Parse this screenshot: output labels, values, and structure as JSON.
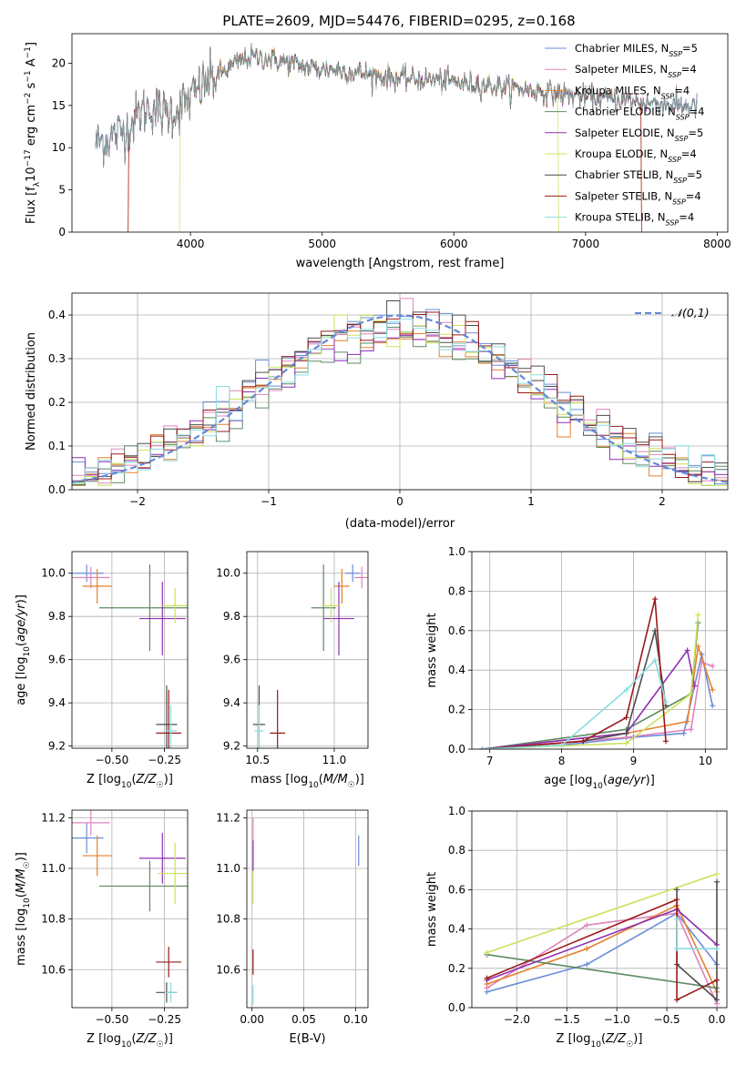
{
  "figure": {
    "title": "PLATE=2609, MJD=54476, FIBERID=0295, z=0.168"
  },
  "colors": {
    "Chabrier MILES": "#6a8ed8",
    "Salpeter MILES": "#e083bd",
    "Kroupa MILES": "#e5802c",
    "Chabrier ELODIE": "#5e8a62",
    "Salpeter ELODIE": "#8f2fb3",
    "Kroupa ELODIE": "#c9e35a",
    "Chabrier STELIB": "#4d4d4d",
    "Salpeter STELIB": "#9b1a1a",
    "Kroupa STELIB": "#8bdde0"
  },
  "chart_data": [
    {
      "id": "spectrum",
      "type": "line",
      "title": "PLATE=2609, MJD=54476, FIBERID=0295, z=0.168",
      "xlabel": "wavelength [Angstrom, rest frame]",
      "ylabel": "Flux [f_λ 10^-17 erg cm^-2 s^-1 A^-1]",
      "xlim": [
        3100,
        8080
      ],
      "ylim": [
        0,
        23.5
      ],
      "xticks": [
        4000,
        5000,
        6000,
        7000,
        8000
      ],
      "yticks": [
        0,
        5,
        10,
        15,
        20
      ],
      "grid": false,
      "legend": "upper-right",
      "legend_entries": [
        "Chabrier MILES, N_SSP=5",
        "Salpeter MILES, N_SSP=4",
        "Kroupa MILES, N_SSP=4",
        "Chabrier ELODIE, N_SSP=4",
        "Salpeter ELODIE, N_SSP=5",
        "Kroupa ELODIE, N_SSP=4",
        "Chabrier STELIB, N_SSP=5",
        "Salpeter STELIB, N_SSP=4",
        "Kroupa STELIB, N_SSP=4"
      ],
      "data_continuum": {
        "wavelength": [
          3280,
          3400,
          3520,
          3620,
          3700,
          3800,
          3900,
          4000,
          4100,
          4200,
          4300,
          4400,
          4500,
          4700,
          4900,
          5100,
          5300,
          5500,
          5700,
          5900,
          6100,
          6300,
          6500,
          6700,
          6900,
          7100,
          7300,
          7500,
          7700,
          7850
        ],
        "flux": [
          10.5,
          11.2,
          12.3,
          14.2,
          14.8,
          14.0,
          14.5,
          15.8,
          17.5,
          18.5,
          19.5,
          20.5,
          20.8,
          20.2,
          19.5,
          19.2,
          18.8,
          18.3,
          18.1,
          18.0,
          17.6,
          17.3,
          17.0,
          16.6,
          16.2,
          15.9,
          15.6,
          15.3,
          15.0,
          14.8
        ]
      },
      "model_cutoffs": {
        "Salpeter STELIB": [
          3530,
          7420
        ],
        "Kroupa ELODIE": [
          3920,
          6790
        ],
        "Kroupa MILES": [
          3530,
          7420
        ]
      }
    },
    {
      "id": "residuals",
      "type": "histogram",
      "xlabel": "(data-model)/error",
      "ylabel": "Normed distribution",
      "xlim": [
        -2.5,
        2.5
      ],
      "ylim": [
        0,
        0.45
      ],
      "xticks": [
        -2,
        -1,
        0,
        1,
        2
      ],
      "yticks": [
        0.0,
        0.1,
        0.2,
        0.3,
        0.4
      ],
      "grid": true,
      "legend": "upper-right",
      "reference_label": "𝒩(0,1)",
      "bin_width": 0.1
    },
    {
      "id": "age-vs-Z",
      "type": "scatter",
      "xlabel": "Z [log10(Z/Z☉)]",
      "ylabel": "age [log10(age/yr)]",
      "xlim": [
        -0.69,
        -0.14
      ],
      "ylim": [
        9.19,
        10.1
      ],
      "xticks": [
        -0.5,
        -0.25
      ],
      "yticks": [
        9.2,
        9.4,
        9.6,
        9.8,
        10.0
      ],
      "grid": true,
      "points": [
        {
          "model": "Chabrier MILES",
          "x": -0.62,
          "y": 10.0,
          "xerr": 0.08,
          "yerr": 0.04
        },
        {
          "model": "Salpeter MILES",
          "x": -0.6,
          "y": 9.98,
          "xerr": 0.09,
          "yerr": 0.05
        },
        {
          "model": "Kroupa MILES",
          "x": -0.57,
          "y": 9.94,
          "xerr": 0.07,
          "yerr": 0.08
        },
        {
          "model": "Chabrier ELODIE",
          "x": -0.32,
          "y": 9.84,
          "xerr": 0.24,
          "yerr": 0.2
        },
        {
          "model": "Salpeter ELODIE",
          "x": -0.26,
          "y": 9.79,
          "xerr": 0.11,
          "yerr": 0.17
        },
        {
          "model": "Kroupa ELODIE",
          "x": -0.2,
          "y": 9.85,
          "xerr": 0.06,
          "yerr": 0.08
        },
        {
          "model": "Chabrier STELIB",
          "x": -0.24,
          "y": 9.3,
          "xerr": 0.05,
          "yerr": 0.18
        },
        {
          "model": "Salpeter STELIB",
          "x": -0.23,
          "y": 9.26,
          "xerr": 0.06,
          "yerr": 0.2
        },
        {
          "model": "Kroupa STELIB",
          "x": -0.22,
          "y": 9.27,
          "xerr": 0.03,
          "yerr": 0.12
        }
      ]
    },
    {
      "id": "age-vs-mass",
      "type": "scatter",
      "xlabel": "mass [log10(M/M☉)]",
      "ylabel": "",
      "xlim": [
        10.43,
        11.22
      ],
      "ylim": [
        9.19,
        10.1
      ],
      "xticks": [
        10.5,
        11.0
      ],
      "yticks": [
        9.2,
        9.4,
        9.6,
        9.8,
        10.0
      ],
      "grid": true,
      "points": [
        {
          "model": "Chabrier MILES",
          "x": 11.12,
          "y": 10.0,
          "xerr": 0.05,
          "yerr": 0.04
        },
        {
          "model": "Salpeter MILES",
          "x": 11.18,
          "y": 9.98,
          "xerr": 0.05,
          "yerr": 0.05
        },
        {
          "model": "Kroupa MILES",
          "x": 11.05,
          "y": 9.94,
          "xerr": 0.05,
          "yerr": 0.08
        },
        {
          "model": "Chabrier ELODIE",
          "x": 10.93,
          "y": 9.84,
          "xerr": 0.08,
          "yerr": 0.2
        },
        {
          "model": "Salpeter ELODIE",
          "x": 11.03,
          "y": 9.79,
          "xerr": 0.1,
          "yerr": 0.17
        },
        {
          "model": "Kroupa ELODIE",
          "x": 10.98,
          "y": 9.85,
          "xerr": 0.06,
          "yerr": 0.08
        },
        {
          "model": "Chabrier STELIB",
          "x": 10.51,
          "y": 9.3,
          "xerr": 0.04,
          "yerr": 0.18
        },
        {
          "model": "Salpeter STELIB",
          "x": 10.63,
          "y": 9.26,
          "xerr": 0.05,
          "yerr": 0.2
        },
        {
          "model": "Kroupa STELIB",
          "x": 10.51,
          "y": 9.27,
          "xerr": 0.03,
          "yerr": 0.12
        }
      ]
    },
    {
      "id": "massweight-vs-age",
      "type": "line",
      "xlabel": "age [log10(age/yr)]",
      "ylabel": "mass weight",
      "xlim": [
        6.75,
        10.3
      ],
      "ylim": [
        0,
        1.0
      ],
      "xticks": [
        7,
        8,
        9,
        10
      ],
      "yticks": [
        0.0,
        0.2,
        0.4,
        0.6,
        0.8,
        1.0
      ],
      "grid": true,
      "series": [
        {
          "model": "Chabrier MILES",
          "x": [
            6.9,
            8.0,
            9.0,
            9.7,
            9.95,
            10.1
          ],
          "y": [
            0.0,
            0.02,
            0.06,
            0.08,
            0.48,
            0.22
          ]
        },
        {
          "model": "Salpeter MILES",
          "x": [
            6.9,
            8.9,
            9.8,
            9.95,
            10.1
          ],
          "y": [
            0.0,
            0.06,
            0.1,
            0.44,
            0.42
          ]
        },
        {
          "model": "Kroupa MILES",
          "x": [
            6.9,
            8.9,
            9.75,
            9.9,
            10.1
          ],
          "y": [
            0.0,
            0.08,
            0.14,
            0.52,
            0.3
          ]
        },
        {
          "model": "Chabrier ELODIE",
          "x": [
            6.9,
            8.9,
            9.8,
            9.9
          ],
          "y": [
            0.0,
            0.1,
            0.28,
            0.64
          ]
        },
        {
          "model": "Salpeter ELODIE",
          "x": [
            6.9,
            8.9,
            9.75,
            9.85
          ],
          "y": [
            0.0,
            0.08,
            0.5,
            0.32
          ]
        },
        {
          "model": "Kroupa ELODIE",
          "x": [
            6.9,
            8.9,
            9.8,
            9.9
          ],
          "y": [
            0.0,
            0.03,
            0.28,
            0.68
          ]
        },
        {
          "model": "Chabrier STELIB",
          "x": [
            6.9,
            8.3,
            8.9,
            9.3,
            9.45
          ],
          "y": [
            0.0,
            0.04,
            0.08,
            0.6,
            0.22
          ]
        },
        {
          "model": "Salpeter STELIB",
          "x": [
            6.9,
            8.3,
            8.9,
            9.3,
            9.45
          ],
          "y": [
            0.0,
            0.04,
            0.16,
            0.76,
            0.04
          ]
        },
        {
          "model": "Kroupa STELIB",
          "x": [
            6.9,
            8.0,
            8.9,
            9.3,
            9.45
          ],
          "y": [
            0.0,
            0.02,
            0.3,
            0.45,
            0.24
          ]
        }
      ]
    },
    {
      "id": "mass-vs-Z",
      "type": "scatter",
      "xlabel": "Z [log10(Z/Z☉)]",
      "ylabel": "mass [log10(M/M☉)]",
      "xlim": [
        -0.69,
        -0.14
      ],
      "ylim": [
        10.45,
        11.23
      ],
      "xticks": [
        -0.5,
        -0.25
      ],
      "yticks": [
        10.6,
        10.8,
        11.0,
        11.2
      ],
      "grid": true,
      "points": [
        {
          "model": "Chabrier MILES",
          "x": -0.62,
          "y": 11.12,
          "xerr": 0.08,
          "yerr": 0.06
        },
        {
          "model": "Salpeter MILES",
          "x": -0.6,
          "y": 11.18,
          "xerr": 0.09,
          "yerr": 0.05
        },
        {
          "model": "Kroupa MILES",
          "x": -0.57,
          "y": 11.05,
          "xerr": 0.07,
          "yerr": 0.08
        },
        {
          "model": "Chabrier ELODIE",
          "x": -0.32,
          "y": 10.93,
          "xerr": 0.24,
          "yerr": 0.1
        },
        {
          "model": "Salpeter ELODIE",
          "x": -0.26,
          "y": 11.04,
          "xerr": 0.11,
          "yerr": 0.1
        },
        {
          "model": "Kroupa ELODIE",
          "x": -0.2,
          "y": 10.98,
          "xerr": 0.08,
          "yerr": 0.12
        },
        {
          "model": "Chabrier STELIB",
          "x": -0.24,
          "y": 10.51,
          "xerr": 0.05,
          "yerr": 0.04
        },
        {
          "model": "Salpeter STELIB",
          "x": -0.23,
          "y": 10.63,
          "xerr": 0.06,
          "yerr": 0.06
        },
        {
          "model": "Kroupa STELIB",
          "x": -0.22,
          "y": 10.51,
          "xerr": 0.03,
          "yerr": 0.04
        }
      ]
    },
    {
      "id": "mass-vs-EBV",
      "type": "scatter",
      "xlabel": "E(B-V)",
      "ylabel": "",
      "xlim": [
        -0.005,
        0.112
      ],
      "ylim": [
        10.45,
        11.23
      ],
      "xticks": [
        0.0,
        0.05,
        0.1
      ],
      "yticks": [
        10.6,
        10.8,
        11.0,
        11.2
      ],
      "grid": true,
      "points": [
        {
          "model": "Chabrier MILES",
          "x": 0.103,
          "y": 11.07,
          "xerr": 0.0,
          "yerr": 0.06
        },
        {
          "model": "Salpeter MILES",
          "x": 0.001,
          "y": 11.15,
          "xerr": 0.0,
          "yerr": 0.05
        },
        {
          "model": "Kroupa ELODIE",
          "x": 0.001,
          "y": 10.98,
          "xerr": 0.0,
          "yerr": 0.12
        },
        {
          "model": "Salpeter ELODIE",
          "x": 0.001,
          "y": 11.05,
          "xerr": 0.0,
          "yerr": 0.06
        },
        {
          "model": "Salpeter STELIB",
          "x": 0.001,
          "y": 10.63,
          "xerr": 0.0,
          "yerr": 0.05
        },
        {
          "model": "Kroupa STELIB",
          "x": 0.001,
          "y": 10.5,
          "xerr": 0.0,
          "yerr": 0.04
        }
      ]
    },
    {
      "id": "massweight-vs-Z",
      "type": "line",
      "xlabel": "Z [log10(Z/Z☉)]",
      "ylabel": "mass weight",
      "xlim": [
        -2.45,
        0.1
      ],
      "ylim": [
        0,
        1.0
      ],
      "xticks": [
        -2.0,
        -1.5,
        -1.0,
        -0.5,
        0.0
      ],
      "yticks": [
        0.0,
        0.2,
        0.4,
        0.6,
        0.8,
        1.0
      ],
      "grid": true,
      "series": [
        {
          "model": "Chabrier MILES",
          "x": [
            -2.3,
            -1.3,
            -0.4,
            0.0
          ],
          "y": [
            0.08,
            0.22,
            0.48,
            0.22
          ]
        },
        {
          "model": "Salpeter MILES",
          "x": [
            -2.3,
            -1.3,
            -0.4,
            0.0
          ],
          "y": [
            0.1,
            0.42,
            0.48,
            0.02
          ]
        },
        {
          "model": "Kroupa MILES",
          "x": [
            -2.3,
            -1.3,
            -0.4,
            0.0
          ],
          "y": [
            0.12,
            0.3,
            0.52,
            0.08
          ]
        },
        {
          "model": "Chabrier ELODIE",
          "x": [
            -2.3,
            0.0
          ],
          "y": [
            0.27,
            0.1
          ]
        },
        {
          "model": "Salpeter ELODIE",
          "x": [
            -2.3,
            -0.4,
            0.0
          ],
          "y": [
            0.14,
            0.5,
            0.32
          ]
        },
        {
          "model": "Kroupa ELODIE",
          "x": [
            -2.3,
            0.0
          ],
          "y": [
            0.28,
            0.68
          ]
        },
        {
          "model": "Chabrier STELIB",
          "x": [
            -0.4,
            -0.4,
            0.0,
            0.0
          ],
          "y": [
            0.6,
            0.22,
            0.04,
            0.64
          ]
        },
        {
          "model": "Salpeter STELIB",
          "x": [
            -2.3,
            -0.4,
            -0.4,
            0.0
          ],
          "y": [
            0.15,
            0.55,
            0.04,
            0.14
          ]
        },
        {
          "model": "Kroupa STELIB",
          "x": [
            -0.4,
            -0.4,
            0.0
          ],
          "y": [
            0.45,
            0.3,
            0.3
          ]
        }
      ]
    }
  ]
}
